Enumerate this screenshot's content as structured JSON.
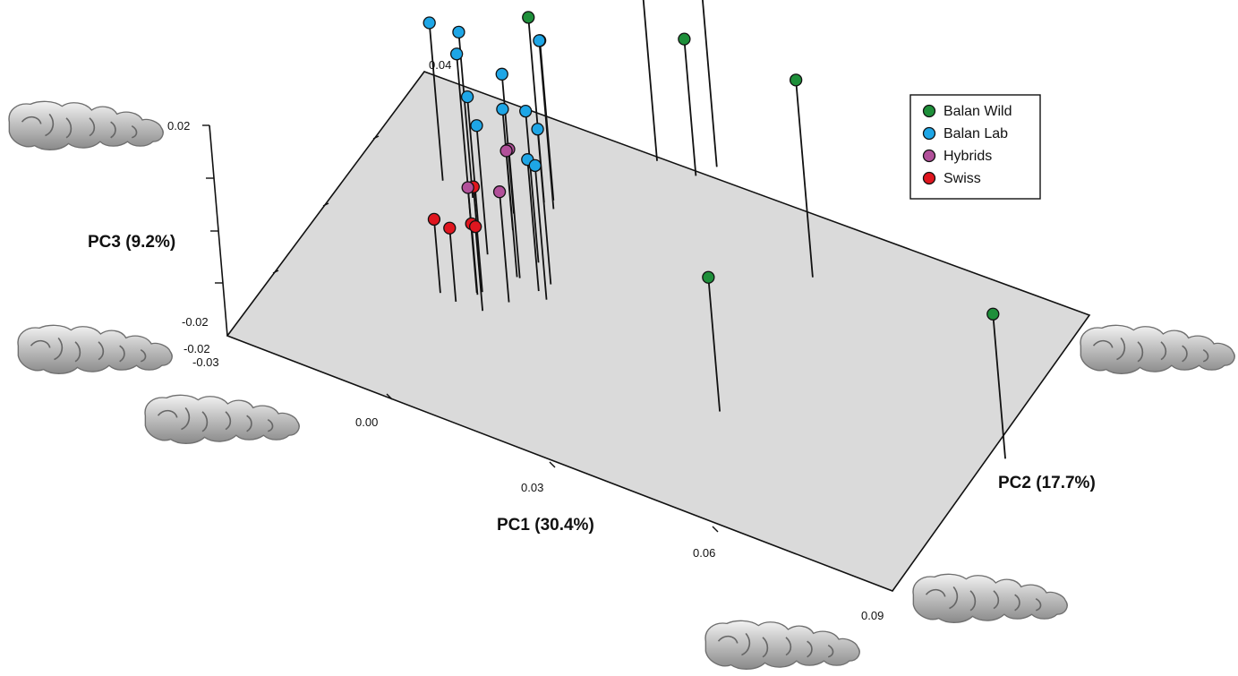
{
  "chart_data": {
    "type": "scatter",
    "projection": "3d",
    "axes": {
      "x": {
        "label": "PC1 (30.4%)",
        "range": [
          -0.03,
          0.09
        ],
        "ticks": [
          "-0.03",
          "0.00",
          "0.03",
          "0.06",
          "0.09"
        ]
      },
      "y": {
        "label": "PC2 (17.7%)",
        "range": [
          -0.02,
          0.04
        ],
        "ticks": [
          "-0.02",
          "0.04"
        ]
      },
      "z": {
        "label": "PC3 (9.2%)",
        "range": [
          -0.02,
          0.02
        ],
        "ticks": [
          "-0.02",
          "0.02"
        ]
      }
    },
    "legend": {
      "position": "top-right"
    },
    "colors": {
      "Balan Wild": "#1e8f3a",
      "Balan Lab": "#1ea6e6",
      "Hybrids": "#b2509a",
      "Swiss": "#e0161f"
    },
    "series": [
      {
        "name": "Balan Wild",
        "points": [
          [
            0.012,
            0.04,
            0.02
          ],
          [
            0.021,
            0.043,
            0.016
          ],
          [
            0.019,
            0.04,
            0.006
          ],
          [
            0.0005,
            0.025,
            0.0152
          ],
          [
            0.046,
            0.03,
            0.0175
          ],
          [
            0.047,
            0.0,
            0.0055
          ],
          [
            0.092,
            0.011,
            0.0075
          ]
        ]
      },
      {
        "name": "Balan Lab",
        "points": [
          [
            -0.016,
            0.022,
            0.01
          ],
          [
            -0.01,
            0.021,
            0.0115
          ],
          [
            -0.008,
            0.017,
            0.0115
          ],
          [
            -0.006,
            0.016,
            0.005
          ],
          [
            -0.0026,
            0.021,
            0.0065
          ],
          [
            -0.001,
            0.018,
            0.003
          ],
          [
            -0.002,
            0.012,
            0.0045
          ],
          [
            0.0016,
            0.026,
            0.0104
          ],
          [
            0.0025,
            0.0245,
            0.012
          ],
          [
            0.006,
            0.014,
            0.0088
          ],
          [
            0.01,
            0.011,
            0.0095
          ],
          [
            0.009,
            0.009,
            0.005
          ],
          [
            0.011,
            0.008,
            0.0055
          ]
        ]
      },
      {
        "name": "Hybrids",
        "points": [
          [
            0.005,
            0.01,
            0.0045
          ],
          [
            0.006,
            0.005,
            0.001
          ],
          [
            0.0045,
            0.01,
            0.004
          ],
          [
            0.0005,
            0.0045,
            0.0
          ]
        ]
      },
      {
        "name": "Swiss",
        "points": [
          [
            -0.0046,
            0.002,
            -0.006
          ],
          [
            -0.0015,
            0.0015,
            -0.006
          ],
          [
            0.0008,
            0.0042,
            -0.0065
          ],
          [
            0.0032,
            0.0017,
            -0.004
          ],
          [
            0.0012,
            0.005,
            0.0
          ]
        ]
      }
    ]
  }
}
